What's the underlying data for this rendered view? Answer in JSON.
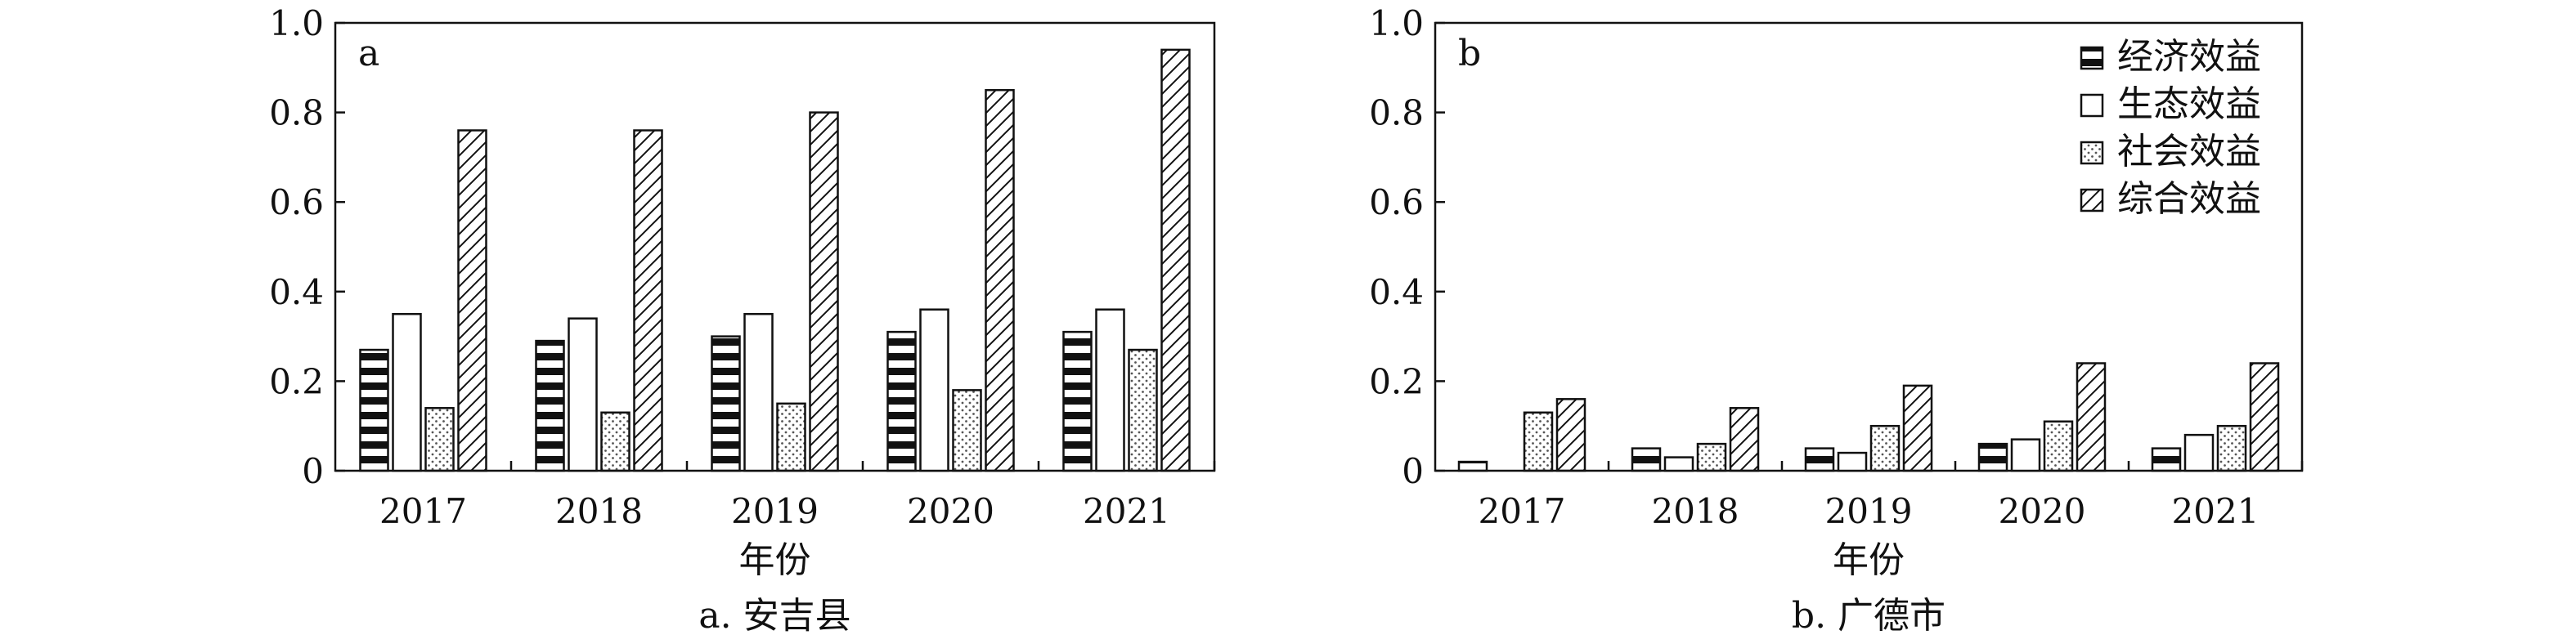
{
  "chart_data": [
    {
      "type": "bar",
      "panel_label": "a",
      "caption": "a. 安吉县",
      "xlabel": "年份",
      "ylabel": "",
      "categories": [
        "2017",
        "2018",
        "2019",
        "2020",
        "2021"
      ],
      "yticks": [
        "0",
        "0.2",
        "0.4",
        "0.6",
        "0.8",
        "1.0"
      ],
      "ylim": [
        0,
        1.0
      ],
      "grid": false,
      "series": [
        {
          "name": "经济效益",
          "values": [
            0.27,
            0.29,
            0.3,
            0.31,
            0.31
          ]
        },
        {
          "name": "生态效益",
          "values": [
            0.35,
            0.34,
            0.35,
            0.36,
            0.36
          ]
        },
        {
          "name": "社会效益",
          "values": [
            0.14,
            0.13,
            0.15,
            0.18,
            0.27
          ]
        },
        {
          "name": "综合效益",
          "values": [
            0.76,
            0.76,
            0.8,
            0.85,
            0.94
          ]
        }
      ]
    },
    {
      "type": "bar",
      "panel_label": "b",
      "caption": "b. 广德市",
      "xlabel": "年份",
      "ylabel": "",
      "categories": [
        "2017",
        "2018",
        "2019",
        "2020",
        "2021"
      ],
      "yticks": [
        "0",
        "0.2",
        "0.4",
        "0.6",
        "0.8",
        "1.0"
      ],
      "ylim": [
        0,
        1.0
      ],
      "grid": false,
      "legend_position": "top-right",
      "series": [
        {
          "name": "经济效益",
          "values": [
            0.02,
            0.05,
            0.05,
            0.06,
            0.05
          ]
        },
        {
          "name": "生态效益",
          "values": [
            0.0,
            0.03,
            0.04,
            0.07,
            0.08
          ]
        },
        {
          "name": "社会效益",
          "values": [
            0.13,
            0.06,
            0.1,
            0.11,
            0.1
          ]
        },
        {
          "name": "综合效益",
          "values": [
            0.16,
            0.14,
            0.19,
            0.24,
            0.24
          ]
        }
      ]
    }
  ]
}
